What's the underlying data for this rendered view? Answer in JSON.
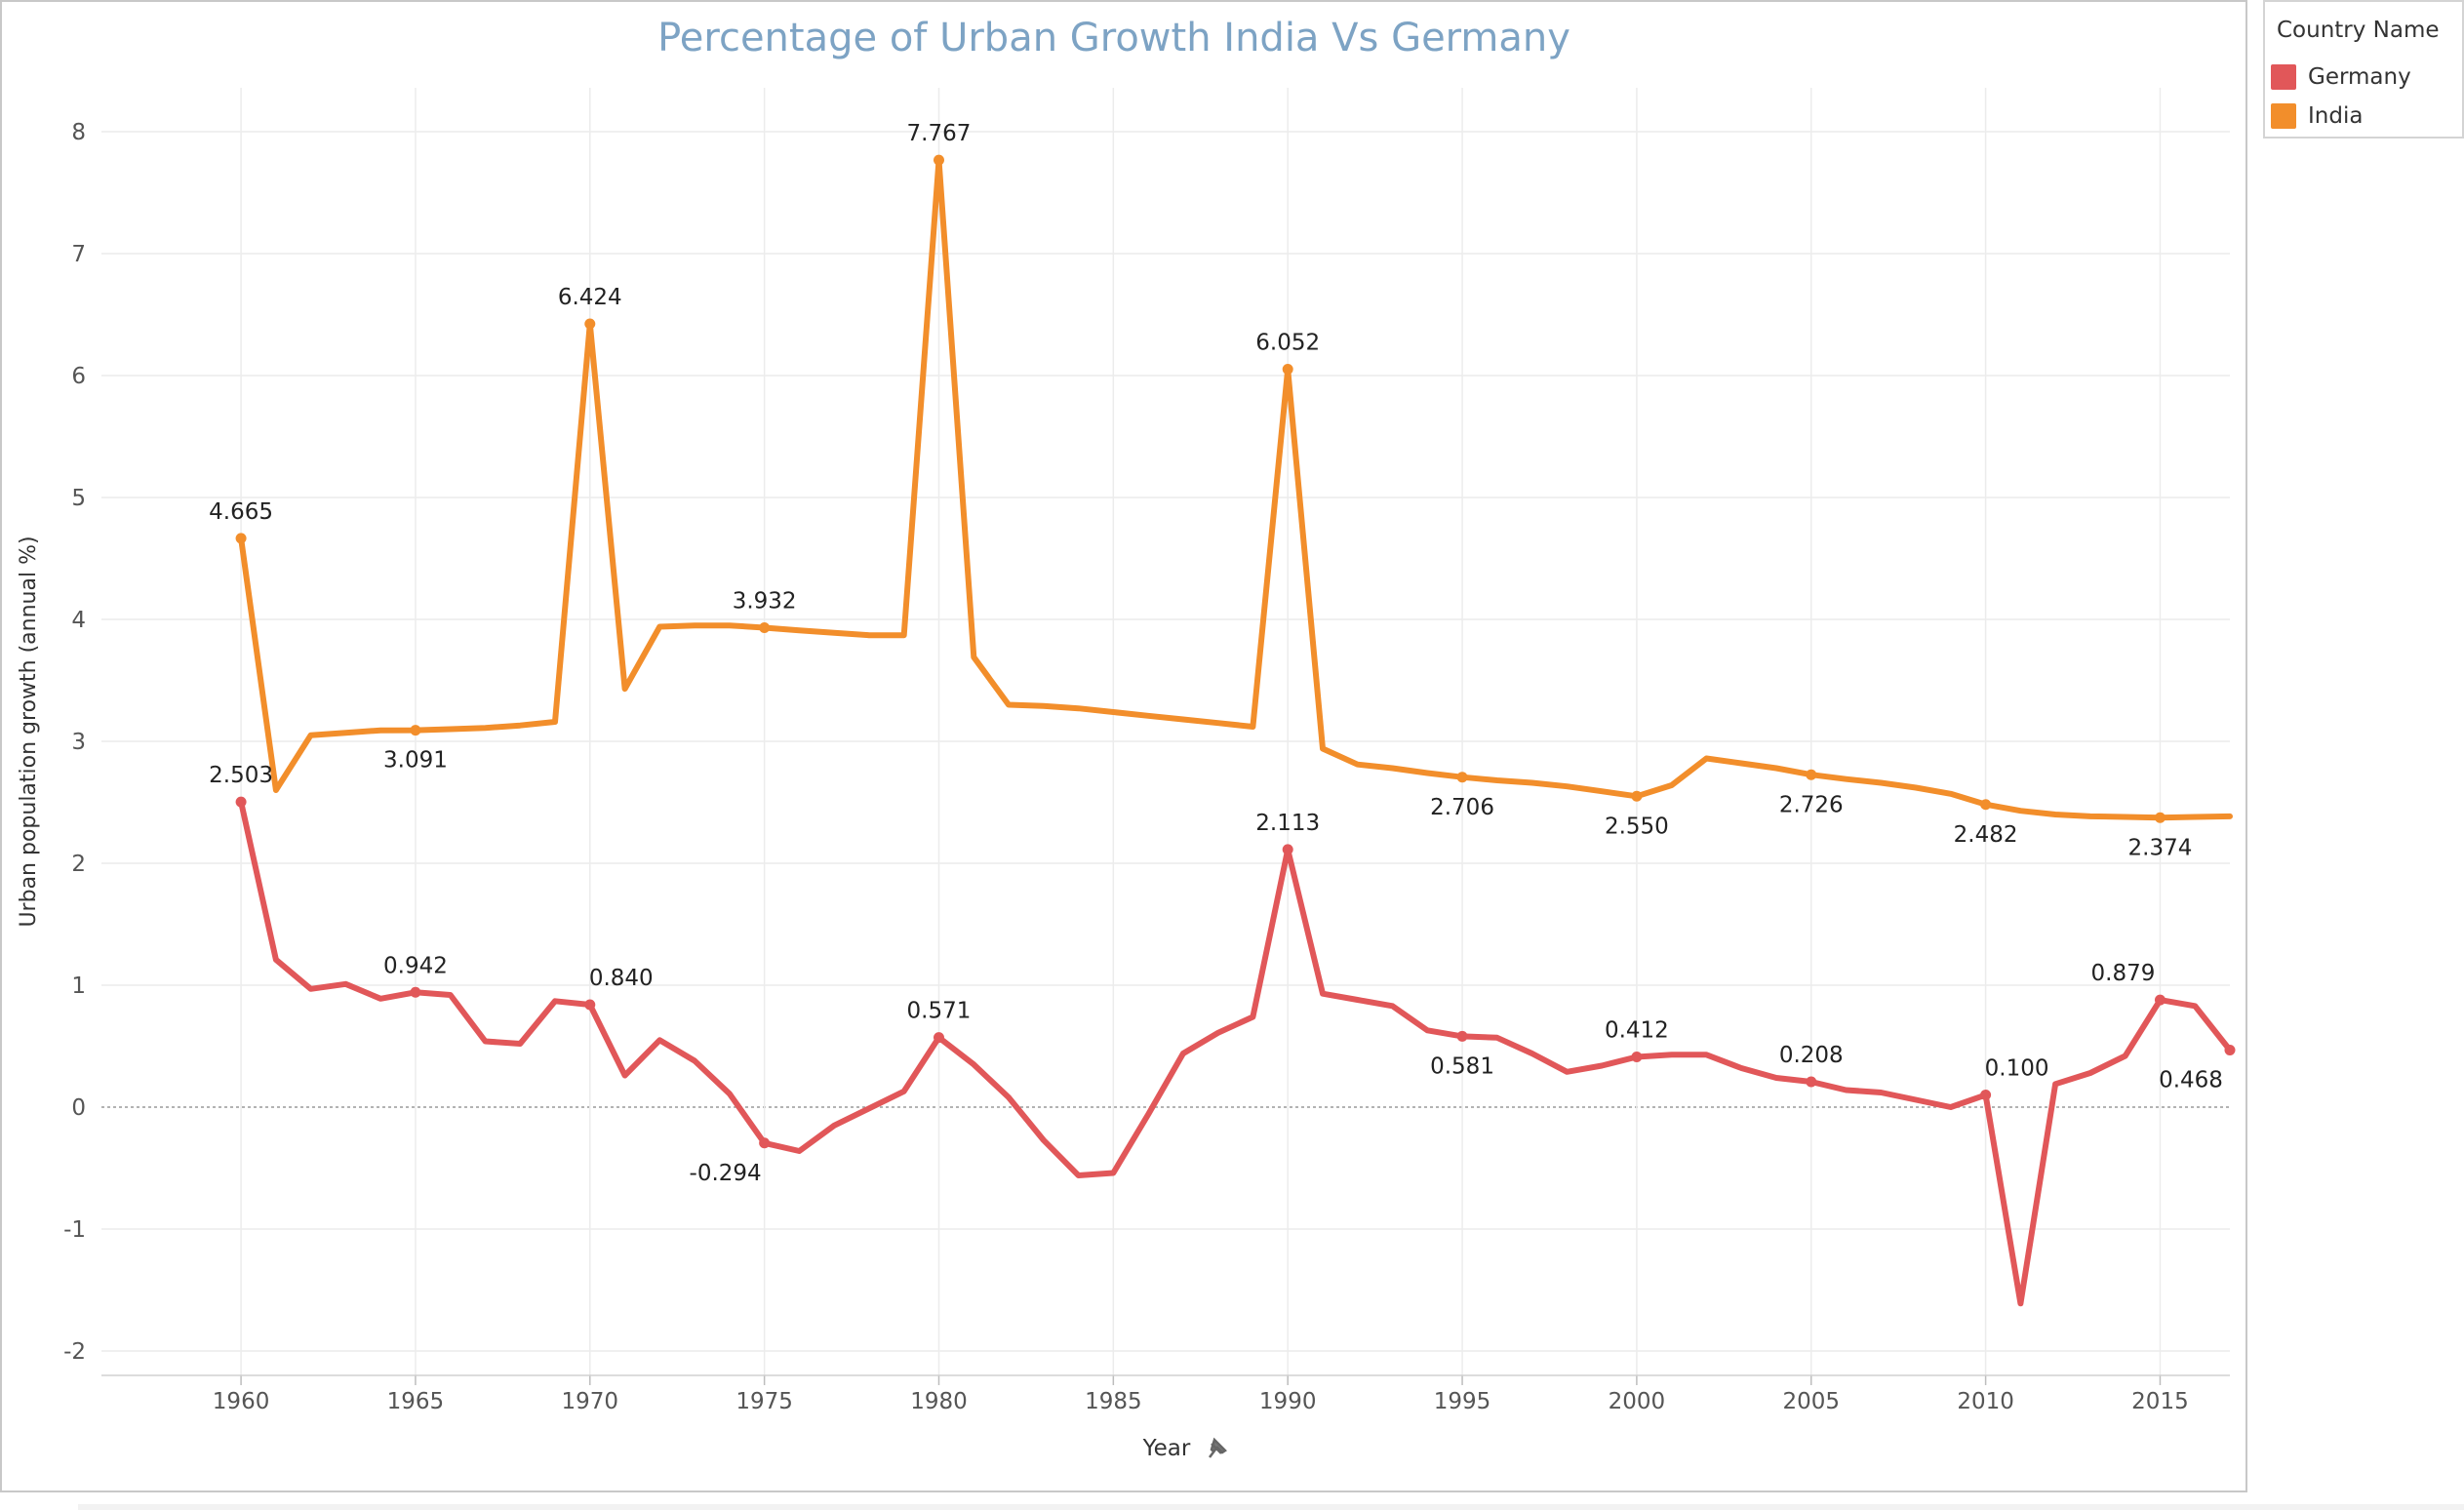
{
  "chart_data": {
    "type": "line",
    "title": "Percentage of Urban Growth India Vs Germany",
    "xlabel": "Year",
    "ylabel": "Urban population growth (annual %)",
    "xlim": [
      1956.0,
      1977.0
    ],
    "ylim": [
      -2.2,
      8.2
    ],
    "x_ticks": [
      1960,
      1965,
      1970,
      1975,
      1980,
      1985,
      1990,
      1995,
      2000,
      2005,
      2010,
      2015
    ],
    "y_ticks": [
      -2,
      -1,
      0,
      1,
      2,
      3,
      4,
      5,
      6,
      7,
      8
    ],
    "grid": true,
    "legend": {
      "title": "Country Name",
      "placement": "right"
    },
    "categories": [
      1960,
      1961,
      1962,
      1963,
      1964,
      1965,
      1966,
      1967,
      1968,
      1969,
      1970,
      1971,
      1972,
      1973,
      1974,
      1975,
      1976,
      1977,
      1978,
      1979,
      1980,
      1981,
      1982,
      1983,
      1984,
      1985,
      1986,
      1987,
      1988,
      1989,
      1990,
      1991,
      1992,
      1993,
      1994,
      1995,
      1996,
      1997,
      1998,
      1999,
      2000,
      2001,
      2002,
      2003,
      2004,
      2005,
      2006,
      2007,
      2008,
      2009,
      2010,
      2011,
      2012,
      2013,
      2014,
      2015,
      2016,
      2017
    ],
    "series": [
      {
        "name": "Germany",
        "color": "#e15759",
        "values": [
          2.503,
          1.21,
          0.97,
          1.01,
          0.89,
          0.942,
          0.92,
          0.54,
          0.52,
          0.87,
          0.84,
          0.26,
          0.55,
          0.38,
          0.11,
          -0.294,
          -0.36,
          -0.15,
          -0.01,
          0.13,
          0.571,
          0.35,
          0.08,
          -0.27,
          -0.56,
          -0.54,
          -0.06,
          0.44,
          0.61,
          0.74,
          2.113,
          0.93,
          0.88,
          0.83,
          0.63,
          0.581,
          0.57,
          0.44,
          0.29,
          0.34,
          0.412,
          0.43,
          0.43,
          0.32,
          0.24,
          0.208,
          0.14,
          0.12,
          0.06,
          0.0,
          0.1,
          -1.61,
          0.19,
          0.28,
          0.42,
          0.879,
          0.83,
          0.468
        ],
        "labels": [
          {
            "year": 1960,
            "text": "2.503",
            "pos": "above"
          },
          {
            "year": 1965,
            "text": "0.942",
            "pos": "above"
          },
          {
            "year": 1970,
            "text": "0.840",
            "pos": "above-right"
          },
          {
            "year": 1975,
            "text": "-0.294",
            "pos": "below-left"
          },
          {
            "year": 1980,
            "text": "0.571",
            "pos": "above"
          },
          {
            "year": 1990,
            "text": "2.113",
            "pos": "above"
          },
          {
            "year": 1995,
            "text": "0.581",
            "pos": "below"
          },
          {
            "year": 2000,
            "text": "0.412",
            "pos": "above"
          },
          {
            "year": 2005,
            "text": "0.208",
            "pos": "above"
          },
          {
            "year": 2010,
            "text": "0.100",
            "pos": "above-right"
          },
          {
            "year": 2015,
            "text": "0.879",
            "pos": "above-left"
          },
          {
            "year": 2017,
            "text": "0.468",
            "pos": "below-left"
          }
        ]
      },
      {
        "name": "India",
        "color": "#f28e2b",
        "values": [
          4.665,
          2.6,
          3.05,
          3.07,
          3.09,
          3.091,
          3.1,
          3.11,
          3.13,
          3.16,
          6.424,
          3.43,
          3.94,
          3.95,
          3.95,
          3.932,
          3.91,
          3.89,
          3.87,
          3.87,
          7.767,
          3.69,
          3.3,
          3.29,
          3.27,
          3.24,
          3.21,
          3.18,
          3.15,
          3.12,
          6.052,
          2.94,
          2.81,
          2.78,
          2.74,
          2.706,
          2.68,
          2.66,
          2.63,
          2.59,
          2.55,
          2.64,
          2.86,
          2.82,
          2.78,
          2.726,
          2.69,
          2.66,
          2.62,
          2.57,
          2.482,
          2.43,
          2.4,
          2.385,
          2.38,
          2.374,
          2.38,
          2.385
        ],
        "labels": [
          {
            "year": 1960,
            "text": "4.665",
            "pos": "above"
          },
          {
            "year": 1965,
            "text": "3.091",
            "pos": "below"
          },
          {
            "year": 1970,
            "text": "6.424",
            "pos": "above"
          },
          {
            "year": 1975,
            "text": "3.932",
            "pos": "above"
          },
          {
            "year": 1980,
            "text": "7.767",
            "pos": "above"
          },
          {
            "year": 1990,
            "text": "6.052",
            "pos": "above"
          },
          {
            "year": 1995,
            "text": "2.706",
            "pos": "below"
          },
          {
            "year": 2000,
            "text": "2.550",
            "pos": "below"
          },
          {
            "year": 2005,
            "text": "2.726",
            "pos": "below"
          },
          {
            "year": 2010,
            "text": "2.482",
            "pos": "below"
          },
          {
            "year": 2015,
            "text": "2.374",
            "pos": "below"
          }
        ]
      }
    ]
  }
}
